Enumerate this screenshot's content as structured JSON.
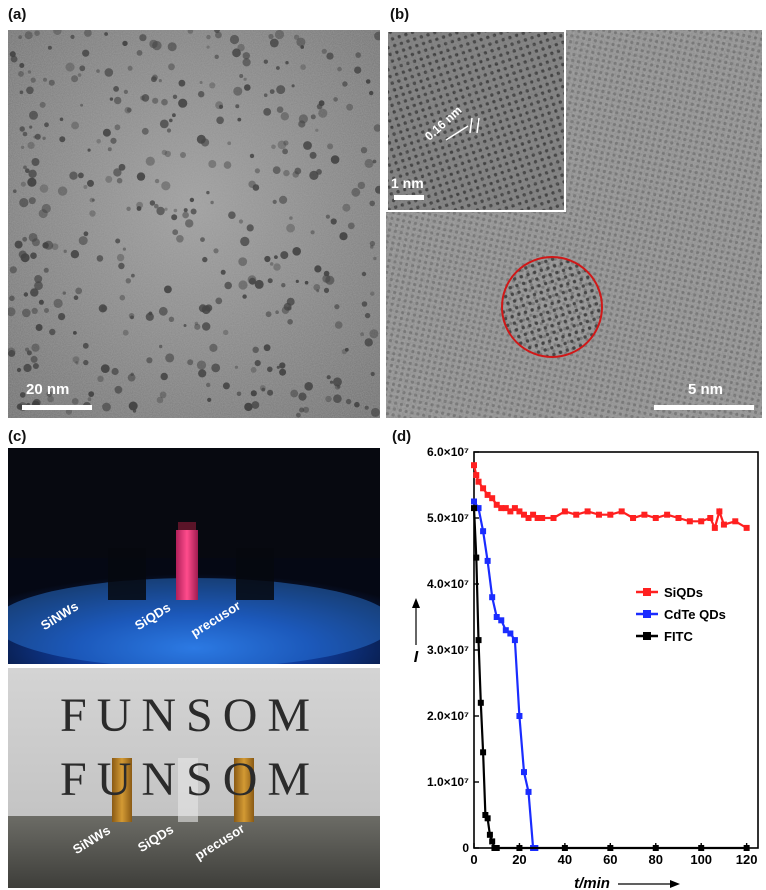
{
  "panels": {
    "a": {
      "label": "(a)",
      "scalebar": "20 nm"
    },
    "b": {
      "label": "(b)",
      "scalebar": "5 nm",
      "inset_scalebar": "1 nm",
      "lattice_spacing": "0.16 nm"
    },
    "c": {
      "label": "(c)",
      "vials_top": [
        "SiNWs",
        "SiQDs",
        "precusor"
      ],
      "vials_bottom": [
        "SiNWs",
        "SiQDs",
        "precusor"
      ],
      "background_text": [
        "FUNSOM",
        "FUNSOM"
      ]
    },
    "d": {
      "label": "(d)"
    }
  },
  "colors": {
    "siqds": "#ff2020",
    "cdte": "#1a2cff",
    "fitc": "#000000",
    "circle": "#d01818"
  },
  "chart_data": {
    "type": "line",
    "title": "",
    "xlabel": "t/min",
    "ylabel": "I",
    "xlim": [
      0,
      125
    ],
    "ylim": [
      0,
      60000000
    ],
    "x_ticks": [
      0,
      20,
      40,
      60,
      80,
      100,
      120
    ],
    "y_ticks": [
      0,
      10000000,
      20000000,
      30000000,
      40000000,
      50000000,
      60000000
    ],
    "y_tick_labels": [
      "0",
      "1.0×10⁷",
      "2.0×10⁷",
      "3.0×10⁷",
      "4.0×10⁷",
      "5.0×10⁷",
      "6.0×10⁷"
    ],
    "x_tick_labels": [
      "0",
      "20",
      "40",
      "60",
      "80",
      "100",
      "120"
    ],
    "legend_position": "right-middle",
    "series": [
      {
        "name": "SiQDs",
        "color": "#ff2020",
        "x": [
          0,
          1,
          2,
          4,
          6,
          8,
          10,
          12,
          14,
          16,
          18,
          20,
          22,
          24,
          26,
          28,
          30,
          35,
          40,
          45,
          50,
          55,
          60,
          65,
          70,
          75,
          80,
          85,
          90,
          95,
          100,
          104,
          106,
          108,
          110,
          115,
          120
        ],
        "y": [
          58000000,
          56500000,
          55500000,
          54500000,
          53500000,
          53000000,
          52000000,
          51500000,
          51500000,
          51000000,
          51500000,
          51000000,
          50500000,
          50000000,
          50500000,
          50000000,
          50000000,
          50000000,
          51000000,
          50500000,
          51000000,
          50500000,
          50500000,
          51000000,
          50000000,
          50500000,
          50000000,
          50500000,
          50000000,
          49500000,
          49500000,
          50000000,
          48500000,
          51000000,
          49000000,
          49500000,
          48500000
        ]
      },
      {
        "name": "CdTe QDs",
        "color": "#1a2cff",
        "x": [
          0,
          2,
          4,
          6,
          8,
          10,
          12,
          14,
          16,
          18,
          20,
          22,
          24,
          26,
          27
        ],
        "y": [
          52500000,
          51500000,
          48000000,
          43500000,
          38000000,
          35000000,
          34500000,
          33000000,
          32500000,
          31500000,
          20000000,
          11500000,
          8500000,
          0,
          0
        ]
      },
      {
        "name": "FITC",
        "color": "#000000",
        "x": [
          0,
          1,
          2,
          3,
          4,
          5,
          6,
          7,
          8,
          9,
          10,
          20,
          40,
          60,
          80,
          100,
          120
        ],
        "y": [
          51500000,
          44000000,
          31500000,
          22000000,
          14500000,
          5000000,
          4500000,
          2000000,
          1000000,
          0,
          0,
          0,
          0,
          0,
          0,
          0,
          0
        ]
      }
    ]
  }
}
